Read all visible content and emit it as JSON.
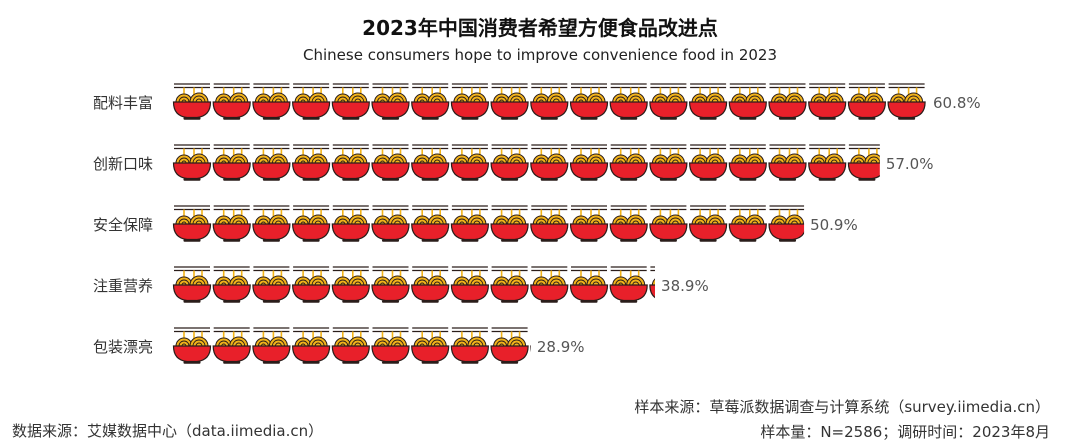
{
  "title": "2023年中国消费者希望方便食品改进点",
  "subtitle": "Chinese consumers hope to improve convenience food in 2023",
  "chart_data": {
    "type": "bar",
    "orientation": "horizontal",
    "categories": [
      "配料丰富",
      "创新口味",
      "安全保障",
      "注重营养",
      "包装漂亮"
    ],
    "values": [
      60.8,
      57.0,
      50.9,
      38.9,
      28.9
    ],
    "value_labels": [
      "60.8%",
      "57.0%",
      "50.9%",
      "38.9%",
      "28.9%"
    ],
    "unit": "%",
    "mark_style": "noodle-bowl-icon pictograph",
    "colors": {
      "bowl": "#e8202a",
      "noodles": "#f2b31a",
      "outline": "#2a1d1a",
      "label": "#555555"
    }
  },
  "footer": {
    "source_left": "数据来源：艾媒数据中心（data.iimedia.cn）",
    "source_right": "样本来源：草莓派数据调查与计算系统（survey.iimedia.cn）",
    "sample": "样本量：N=2586；调研时间：2023年8月"
  }
}
